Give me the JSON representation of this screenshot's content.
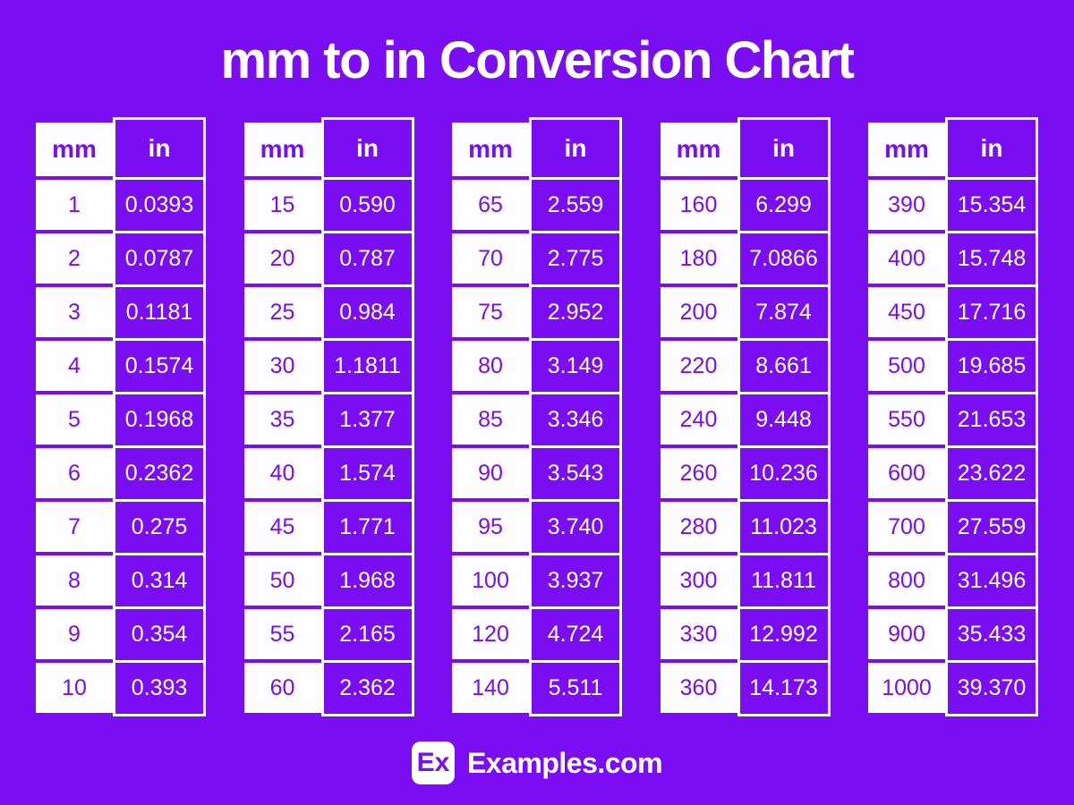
{
  "chart_data": {
    "type": "table",
    "title": "mm to in Conversion Chart",
    "columns": [
      "mm",
      "in"
    ],
    "tables": [
      {
        "rows": [
          {
            "mm": "1",
            "in": "0.0393"
          },
          {
            "mm": "2",
            "in": "0.0787"
          },
          {
            "mm": "3",
            "in": "0.1181"
          },
          {
            "mm": "4",
            "in": "0.1574"
          },
          {
            "mm": "5",
            "in": "0.1968"
          },
          {
            "mm": "6",
            "in": "0.2362"
          },
          {
            "mm": "7",
            "in": "0.275"
          },
          {
            "mm": "8",
            "in": "0.314"
          },
          {
            "mm": "9",
            "in": "0.354"
          },
          {
            "mm": "10",
            "in": "0.393"
          }
        ]
      },
      {
        "rows": [
          {
            "mm": "15",
            "in": "0.590"
          },
          {
            "mm": "20",
            "in": "0.787"
          },
          {
            "mm": "25",
            "in": "0.984"
          },
          {
            "mm": "30",
            "in": "1.1811"
          },
          {
            "mm": "35",
            "in": "1.377"
          },
          {
            "mm": "40",
            "in": "1.574"
          },
          {
            "mm": "45",
            "in": "1.771"
          },
          {
            "mm": "50",
            "in": "1.968"
          },
          {
            "mm": "55",
            "in": "2.165"
          },
          {
            "mm": "60",
            "in": "2.362"
          }
        ]
      },
      {
        "rows": [
          {
            "mm": "65",
            "in": "2.559"
          },
          {
            "mm": "70",
            "in": "2.775"
          },
          {
            "mm": "75",
            "in": "2.952"
          },
          {
            "mm": "80",
            "in": "3.149"
          },
          {
            "mm": "85",
            "in": "3.346"
          },
          {
            "mm": "90",
            "in": "3.543"
          },
          {
            "mm": "95",
            "in": "3.740"
          },
          {
            "mm": "100",
            "in": "3.937"
          },
          {
            "mm": "120",
            "in": "4.724"
          },
          {
            "mm": "140",
            "in": "5.511"
          }
        ]
      },
      {
        "rows": [
          {
            "mm": "160",
            "in": "6.299"
          },
          {
            "mm": "180",
            "in": "7.0866"
          },
          {
            "mm": "200",
            "in": "7.874"
          },
          {
            "mm": "220",
            "in": "8.661"
          },
          {
            "mm": "240",
            "in": "9.448"
          },
          {
            "mm": "260",
            "in": "10.236"
          },
          {
            "mm": "280",
            "in": "11.023"
          },
          {
            "mm": "300",
            "in": "11.811"
          },
          {
            "mm": "330",
            "in": "12.992"
          },
          {
            "mm": "360",
            "in": "14.173"
          }
        ]
      },
      {
        "rows": [
          {
            "mm": "390",
            "in": "15.354"
          },
          {
            "mm": "400",
            "in": "15.748"
          },
          {
            "mm": "450",
            "in": "17.716"
          },
          {
            "mm": "500",
            "in": "19.685"
          },
          {
            "mm": "550",
            "in": "21.653"
          },
          {
            "mm": "600",
            "in": "23.622"
          },
          {
            "mm": "700",
            "in": "27.559"
          },
          {
            "mm": "800",
            "in": "31.496"
          },
          {
            "mm": "900",
            "in": "35.433"
          },
          {
            "mm": "1000",
            "in": "39.370"
          }
        ]
      }
    ]
  },
  "footer": {
    "logo_text": "Ex",
    "site_name": "Examples.com"
  },
  "colors": {
    "background": "#7a0df1",
    "cell_white": "#fdfdff",
    "text_white": "#ffffff"
  }
}
